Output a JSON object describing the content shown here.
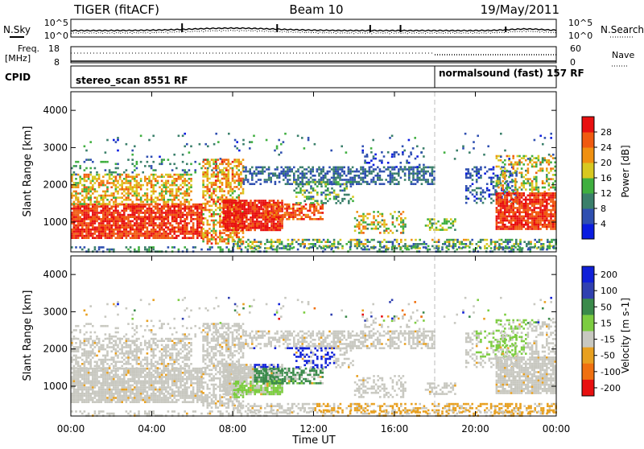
{
  "header": {
    "radar": "TIGER (fitACF)",
    "beam": "Beam 10",
    "date": "19/May/2011"
  },
  "top_panel": {
    "left_label": "N.Sky",
    "right_label": "N.Search",
    "ticks_left": [
      "10^5",
      "10^0"
    ],
    "ticks_right": [
      "10^5",
      "10^0"
    ]
  },
  "freq_panel": {
    "left_label_1": "Freq.",
    "left_label_2": "[MHz]",
    "left_ticks": [
      "18",
      "8"
    ],
    "right_label": "Nave",
    "right_ticks": [
      "60",
      "0"
    ]
  },
  "cpid": {
    "label": "CPID",
    "segments": [
      {
        "text": "stereo_scan 8551 RF",
        "start_hour": 0,
        "end_hour": 18
      },
      {
        "text": "normalsound (fast) 157 RF",
        "start_hour": 18,
        "end_hour": 24
      }
    ]
  },
  "chart_data": [
    {
      "type": "heatmap",
      "name": "power",
      "ylabel": "Slant Range [km]",
      "yticks": [
        "1000",
        "2000",
        "3000",
        "4000"
      ],
      "ylim": [
        200,
        4500
      ],
      "colorbar": {
        "label": "Power [dB]",
        "ticks": [
          "4",
          "8",
          "12",
          "16",
          "20",
          "24",
          "28"
        ],
        "range": [
          0,
          32
        ],
        "colors": [
          "#0a1ce0",
          "#2f4fb0",
          "#3a7f6a",
          "#3faf3f",
          "#d8c820",
          "#f09010",
          "#f05a10",
          "#e81010"
        ]
      }
    },
    {
      "type": "heatmap",
      "name": "velocity",
      "ylabel": "Slant Range [km]",
      "yticks": [
        "1000",
        "2000",
        "3000",
        "4000"
      ],
      "ylim": [
        200,
        4500
      ],
      "colorbar": {
        "label": "Velocity [m s-1]",
        "ticks": [
          "200",
          "100",
          "50",
          "15",
          "-15",
          "-50",
          "-100",
          "-200"
        ],
        "colors": [
          "#1020d8",
          "#3040b0",
          "#3a8a4a",
          "#7ccc40",
          "#c8c8c0",
          "#e8a020",
          "#f07010",
          "#e81010"
        ]
      }
    }
  ],
  "x_axis": {
    "ticks": [
      "00:00",
      "04:00",
      "08:00",
      "12:00",
      "16:00",
      "20:00",
      "00:00"
    ],
    "label": "Time UT"
  }
}
